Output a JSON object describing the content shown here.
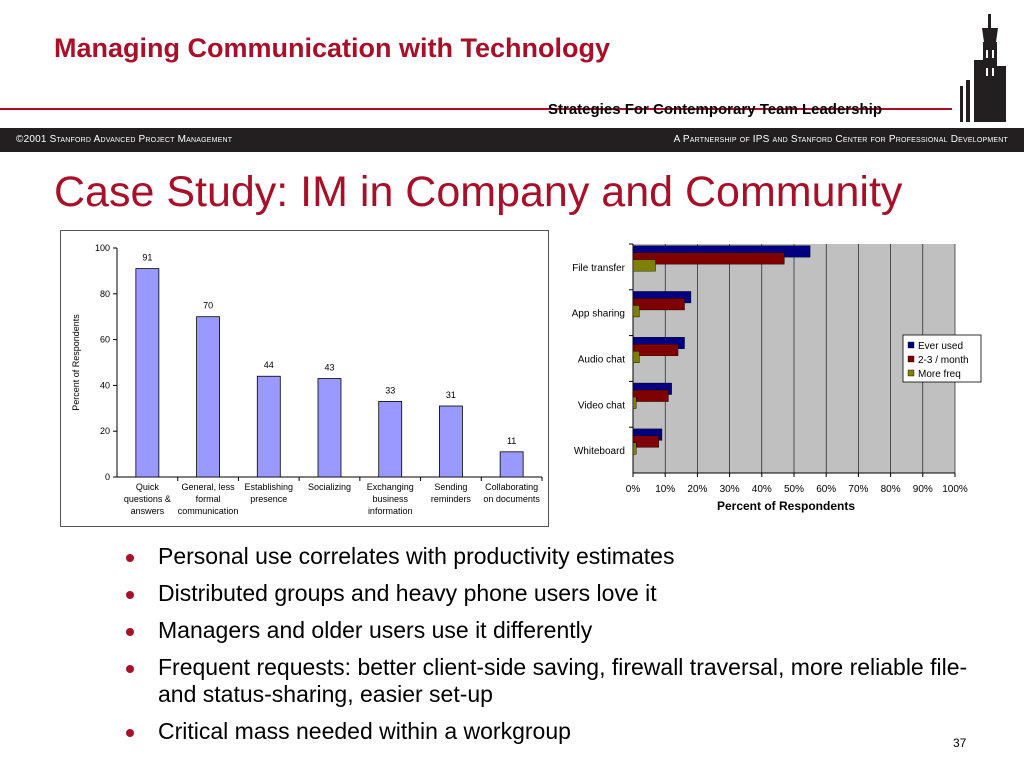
{
  "header": {
    "title": "Managing Communication with Technology",
    "subtitle": "Strategies For Contemporary Team Leadership"
  },
  "banner": {
    "left": "©2001 Stanford Advanced Project Management",
    "right": "A Partnership of IPS and Stanford Center for Professional Development"
  },
  "slide": {
    "title": "Case Study: IM in Company and Community",
    "page_number": "37"
  },
  "bullets": [
    "Personal use correlates with productivity estimates",
    "Distributed groups and heavy phone users love it",
    "Managers and older users use it differently",
    "Frequent requests: better client-side saving, firewall traversal, more reliable file- and status-sharing, easier set-up",
    "Critical mass needed within a workgroup"
  ],
  "colors": {
    "accent": "#a8102a",
    "bar1": "#9999ff",
    "ever_used": "#000080",
    "per_month": "#800000",
    "more_freq": "#808000",
    "plot_bg": "#c0c0c0"
  },
  "chart_data": [
    {
      "type": "bar",
      "categories": [
        [
          "Quick",
          "questions &",
          "answers"
        ],
        [
          "General, less",
          "formal",
          "communication"
        ],
        [
          "Establishing",
          "presence"
        ],
        [
          "Socializing"
        ],
        [
          "Exchanging",
          "business",
          "information"
        ],
        [
          "Sending",
          "reminders"
        ],
        [
          "Collaborating",
          "on documents"
        ]
      ],
      "values": [
        91,
        70,
        44,
        43,
        33,
        31,
        11
      ],
      "data_labels": [
        "91",
        "70",
        "44",
        "43",
        "33",
        "31",
        "11"
      ],
      "ylabel": "Percent of Respondents",
      "ylim": [
        0,
        100
      ],
      "yticks": [
        "0",
        "20",
        "40",
        "60",
        "80",
        "100"
      ],
      "grid": false
    },
    {
      "type": "bar",
      "orientation": "horizontal",
      "categories": [
        "File transfer",
        "App sharing",
        "Audio chat",
        "Video chat",
        "Whiteboard"
      ],
      "series": [
        {
          "name": "Ever used",
          "values": [
            55,
            18,
            16,
            12,
            9
          ]
        },
        {
          "name": "2-3 / month",
          "values": [
            47,
            16,
            14,
            11,
            8
          ]
        },
        {
          "name": "More freq",
          "values": [
            7,
            2,
            2,
            1,
            1
          ]
        }
      ],
      "xlabel": "Percent of Respondents",
      "xlim": [
        0,
        100
      ],
      "xticks": [
        "0%",
        "10%",
        "20%",
        "30%",
        "40%",
        "50%",
        "60%",
        "70%",
        "80%",
        "90%",
        "100%"
      ],
      "legend": "right",
      "grid": true
    }
  ]
}
